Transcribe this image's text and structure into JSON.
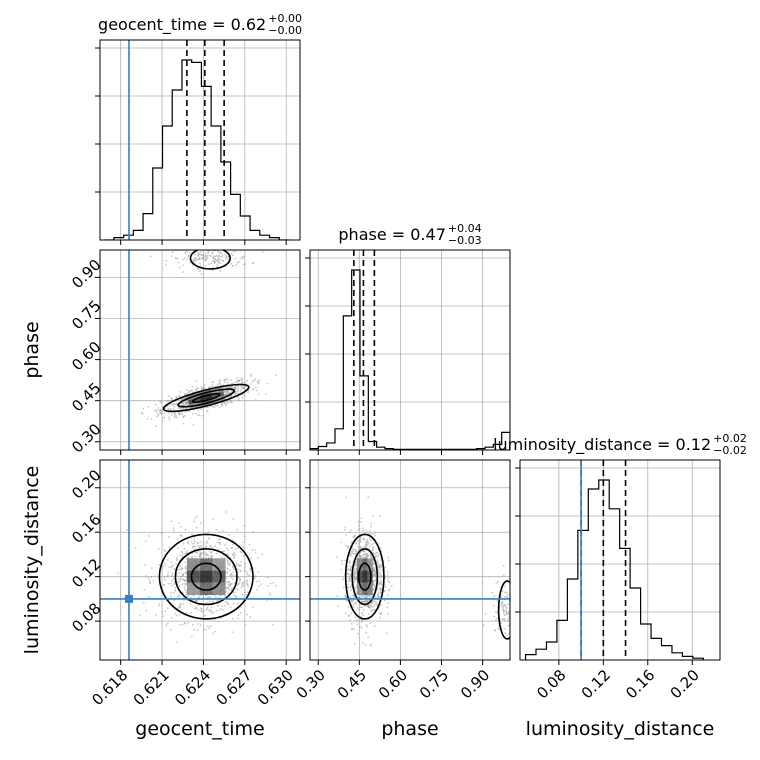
{
  "chart_data": {
    "type": "corner",
    "grid": true,
    "params": [
      "geocent_time",
      "phase",
      "luminosity_distance"
    ],
    "truths": {
      "geocent_time": 0.6186,
      "phase": null,
      "luminosity_distance": 0.1
    },
    "truth_color": "#3a7fc1",
    "axes": {
      "geocent_time": {
        "label": "geocent_time",
        "range": [
          0.6165,
          0.631
        ],
        "ticks": [
          0.618,
          0.621,
          0.624,
          0.627,
          0.63
        ],
        "ticklabels": [
          "0.618",
          "0.621",
          "0.624",
          "0.627",
          "0.630"
        ]
      },
      "phase": {
        "label": "phase",
        "range": [
          0.27,
          1.0
        ],
        "ticks": [
          0.3,
          0.45,
          0.6,
          0.75,
          0.9
        ],
        "ticklabels": [
          "0.30",
          "0.45",
          "0.60",
          "0.75",
          "0.90"
        ]
      },
      "luminosity_distance": {
        "label": "luminosity_distance",
        "range": [
          0.045,
          0.225
        ],
        "ticks": [
          0.08,
          0.12,
          0.16,
          0.2
        ],
        "ticklabels": [
          "0.08",
          "0.12",
          "0.16",
          "0.20"
        ]
      }
    },
    "titles": [
      {
        "param": "geocent_time",
        "text": "geocent_time = 0.62",
        "sup": "+0.00",
        "sub": "−0.00"
      },
      {
        "param": "phase",
        "text": "phase = 0.47",
        "sup": "+0.04",
        "sub": "−0.03"
      },
      {
        "param": "luminosity_distance",
        "text": "luminosity_distance = 0.12",
        "sup": "+0.02",
        "sub": "−0.02"
      }
    ],
    "hist1d": {
      "geocent_time": {
        "edges_range": [
          0.6168,
          0.6302
        ],
        "counts": [
          0,
          2,
          4,
          8,
          22,
          60,
          95,
          125,
          150,
          148,
          128,
          95,
          65,
          38,
          20,
          8,
          4,
          2,
          0
        ],
        "quantiles": [
          0.6228,
          0.6241,
          0.6255
        ]
      },
      "phase": {
        "edges_range": [
          0.27,
          1.0
        ],
        "counts": [
          2,
          5,
          10,
          30,
          190,
          255,
          105,
          12,
          4,
          2,
          1,
          1,
          1,
          1,
          1,
          1,
          1,
          1,
          1,
          1,
          2,
          4,
          8,
          25
        ],
        "quantiles": [
          0.43,
          0.465,
          0.505
        ]
      },
      "luminosity_distance": {
        "edges_range": [
          0.05,
          0.21
        ],
        "counts": [
          3,
          6,
          10,
          22,
          45,
          72,
          95,
          100,
          84,
          62,
          40,
          20,
          12,
          8,
          4,
          2,
          1
        ],
        "quantiles": [
          0.1,
          0.12,
          0.14
        ]
      }
    },
    "hist2d": [
      {
        "x": "geocent_time",
        "y": "phase",
        "mean": [
          0.6242,
          0.46
        ],
        "sd": [
          0.0016,
          0.03
        ],
        "corr": 0.7,
        "secondary": {
          "mean": [
            0.6245,
            0.97
          ],
          "weight": 0.08
        }
      },
      {
        "x": "geocent_time",
        "y": "luminosity_distance",
        "mean": [
          0.6242,
          0.12
        ],
        "sd": [
          0.0017,
          0.02
        ],
        "corr": 0.0
      },
      {
        "x": "phase",
        "y": "luminosity_distance",
        "mean": [
          0.47,
          0.12
        ],
        "sd": [
          0.035,
          0.02
        ],
        "corr": 0.0,
        "secondary": {
          "mean": [
            0.99,
            0.09
          ],
          "weight": 0.1
        }
      }
    ]
  }
}
